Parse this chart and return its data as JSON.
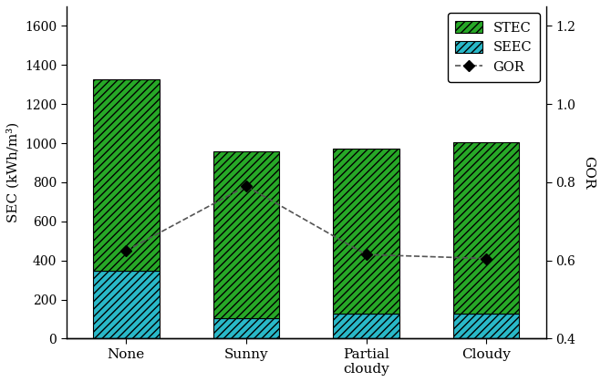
{
  "categories": [
    "None",
    "Sunny",
    "Partial\ncloudy",
    "Cloudy"
  ],
  "STEC": [
    980,
    855,
    840,
    875
  ],
  "SEEC": [
    345,
    105,
    130,
    130
  ],
  "GOR": [
    0.625,
    0.79,
    0.615,
    0.605
  ],
  "bar_width": 0.55,
  "stec_color": "#27a827",
  "seec_color": "#29b8c8",
  "gor_color": "#000000",
  "gor_line_color": "#555555",
  "ylabel_left": "SEC (kWh/m³)",
  "ylabel_right": "GOR",
  "ylim_left": [
    0,
    1700
  ],
  "ylim_right": [
    0.4,
    1.25
  ],
  "yticks_left": [
    0,
    200,
    400,
    600,
    800,
    1000,
    1200,
    1400,
    1600
  ],
  "yticks_right": [
    0.4,
    0.6,
    0.8,
    1.0,
    1.2
  ],
  "legend_labels": [
    "STEC",
    "SEEC",
    "GOR"
  ],
  "background_color": "#ffffff"
}
